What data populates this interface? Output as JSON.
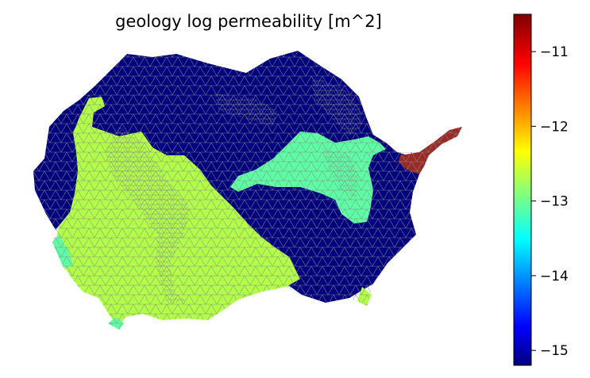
{
  "chart_data": {
    "type": "heatmap",
    "title": "geology log permeability [m^2]",
    "xlabel": "",
    "ylabel": "",
    "grid": false,
    "colormap": "jet",
    "colorbar": {
      "position": "right",
      "range": [
        -15.2,
        -10.5
      ],
      "ticks": [
        -11,
        -12,
        -13,
        -14,
        -15
      ],
      "tick_labels": [
        "−11",
        "−12",
        "−13",
        "−14",
        "−15"
      ]
    },
    "regions": [
      {
        "name": "dark-blue unit",
        "value": -15.1,
        "color": "#00007f"
      },
      {
        "name": "yellow-green unit",
        "value": -12.5,
        "color": "#b2ff47"
      },
      {
        "name": "aquamarine unit",
        "value": -13.0,
        "color": "#5cffa3"
      },
      {
        "name": "dark-red unit",
        "value": -10.6,
        "color": "#9a2a26"
      }
    ],
    "mesh_edge_color": "#888888"
  }
}
